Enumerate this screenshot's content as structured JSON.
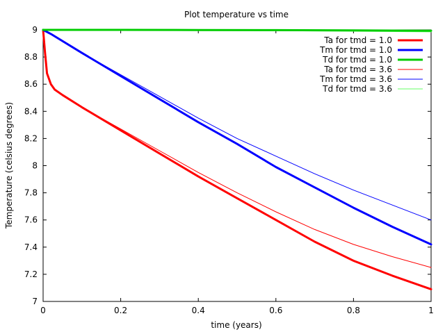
{
  "chart_data": {
    "type": "line",
    "title": "Plot temperature vs time",
    "xlabel": "time (years)",
    "ylabel": "Temperature (celsius degrees)",
    "xlim": [
      0,
      1
    ],
    "ylim": [
      7,
      9
    ],
    "xticks": [
      0,
      0.2,
      0.4,
      0.6,
      0.8,
      1
    ],
    "xtick_labels": [
      "0",
      "0.2",
      "0.4",
      "0.6",
      "0.8",
      "1"
    ],
    "yticks": [
      7,
      7.2,
      7.4,
      7.6,
      7.8,
      8,
      8.2,
      8.4,
      8.6,
      8.8,
      9
    ],
    "ytick_labels": [
      "7",
      "7.2",
      "7.4",
      "7.6",
      "7.8",
      "8",
      "8.2",
      "8.4",
      "8.6",
      "8.8",
      "9"
    ],
    "grid": false,
    "legend_position": "top-right",
    "series": [
      {
        "name": "Ta for tmd = 1.0",
        "color": "#ff0000",
        "line_weight": "thick",
        "x": [
          0,
          0.005,
          0.01,
          0.02,
          0.03,
          0.05,
          0.1,
          0.2,
          0.3,
          0.4,
          0.5,
          0.6,
          0.7,
          0.8,
          0.9,
          1.0
        ],
        "y": [
          9.0,
          8.83,
          8.68,
          8.6,
          8.56,
          8.52,
          8.43,
          8.26,
          8.09,
          7.92,
          7.76,
          7.6,
          7.44,
          7.3,
          7.19,
          7.09
        ]
      },
      {
        "name": "Tm for tmd = 1.0",
        "color": "#0000ff",
        "line_weight": "thick",
        "x": [
          0,
          0.02,
          0.1,
          0.2,
          0.3,
          0.4,
          0.5,
          0.6,
          0.7,
          0.8,
          0.9,
          1.0
        ],
        "y": [
          9.0,
          8.97,
          8.83,
          8.66,
          8.49,
          8.32,
          8.16,
          7.99,
          7.84,
          7.69,
          7.55,
          7.42
        ]
      },
      {
        "name": "Td for tmd = 1.0",
        "color": "#00cc00",
        "line_weight": "thick",
        "x": [
          0,
          0.2,
          0.4,
          0.6,
          0.8,
          1.0
        ],
        "y": [
          9.0,
          9.0,
          8.999,
          8.998,
          8.996,
          8.994
        ]
      },
      {
        "name": "Ta for tmd = 3.6",
        "color": "#ff0000",
        "line_weight": "thin",
        "x": [
          0,
          0.005,
          0.01,
          0.02,
          0.03,
          0.05,
          0.1,
          0.2,
          0.3,
          0.4,
          0.5,
          0.6,
          0.7,
          0.8,
          0.9,
          1.0
        ],
        "y": [
          9.0,
          8.83,
          8.68,
          8.6,
          8.56,
          8.52,
          8.43,
          8.27,
          8.11,
          7.95,
          7.8,
          7.66,
          7.53,
          7.42,
          7.33,
          7.25
        ]
      },
      {
        "name": "Tm for tmd = 3.6",
        "color": "#0000ff",
        "line_weight": "thin",
        "x": [
          0,
          0.02,
          0.1,
          0.2,
          0.3,
          0.4,
          0.5,
          0.6,
          0.7,
          0.8,
          0.9,
          1.0
        ],
        "y": [
          9.0,
          8.97,
          8.83,
          8.67,
          8.51,
          8.35,
          8.2,
          8.07,
          7.94,
          7.82,
          7.71,
          7.6
        ]
      },
      {
        "name": "Td for tmd = 3.6",
        "color": "#66ff66",
        "line_weight": "thin",
        "x": [
          0,
          0.2,
          0.4,
          0.6,
          0.8,
          1.0
        ],
        "y": [
          9.0,
          8.999,
          8.997,
          8.994,
          8.99,
          8.985
        ]
      }
    ]
  }
}
